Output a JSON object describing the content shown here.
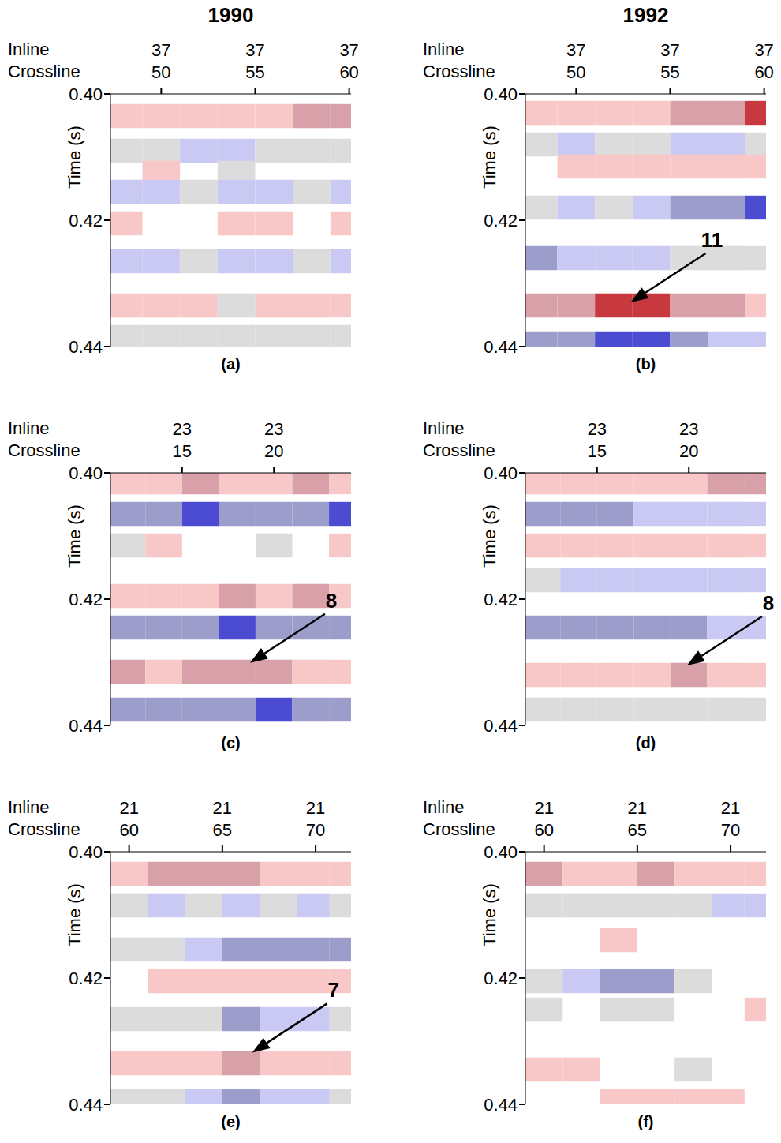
{
  "chart_data": [
    {
      "type": "heatmap",
      "title": "1990",
      "panel_label": "(a)",
      "xlabel_top": "Inline",
      "xlabel": "Crossline",
      "inline": 37,
      "xlim": [
        47.3,
        60.1
      ],
      "xticks": [
        50,
        55,
        60
      ],
      "ylabel": "Time (s)",
      "ylim": [
        0.4,
        0.44
      ],
      "yticks": [
        {
          "value": 0.4,
          "label": "0.40"
        },
        {
          "value": 0.42,
          "label": "0.42"
        },
        {
          "value": 0.44,
          "label": "0.44"
        }
      ],
      "x": [
        48,
        50,
        52,
        54,
        56,
        58,
        60
      ],
      "events": [
        {
          "time": 0.4035,
          "amplitude": [
            1,
            1,
            1,
            1,
            1,
            2,
            2
          ]
        },
        {
          "time": 0.409,
          "amplitude": [
            0.5,
            0.5,
            -1,
            -1,
            0.5,
            0.5,
            0.5
          ]
        },
        {
          "time": 0.4125,
          "amplitude": [
            0,
            1,
            0,
            0.5,
            0,
            0,
            0
          ]
        },
        {
          "time": 0.4155,
          "amplitude": [
            -1,
            -1,
            0.5,
            -1,
            -1,
            0.5,
            -1
          ]
        },
        {
          "time": 0.4205,
          "amplitude": [
            1,
            0,
            0,
            1,
            1,
            0,
            1
          ]
        },
        {
          "time": 0.4265,
          "amplitude": [
            -1,
            -1,
            0.5,
            -1,
            -1,
            0.5,
            -1
          ]
        },
        {
          "time": 0.4335,
          "amplitude": [
            1,
            1,
            1,
            0.5,
            1,
            1,
            1
          ]
        },
        {
          "time": 0.4385,
          "amplitude": [
            0.5,
            0.5,
            0.5,
            0.5,
            0.5,
            0.5,
            0.5
          ]
        }
      ],
      "annotations": []
    },
    {
      "type": "heatmap",
      "title": "1992",
      "panel_label": "(b)",
      "xlabel_top": "Inline",
      "xlabel": "Crossline",
      "inline": 37,
      "xlim": [
        47.3,
        60.1
      ],
      "xticks": [
        50,
        55,
        60
      ],
      "ylabel": "Time (s)",
      "ylim": [
        0.4,
        0.44
      ],
      "yticks": [
        {
          "value": 0.4,
          "label": "0.40"
        },
        {
          "value": 0.42,
          "label": "0.42"
        },
        {
          "value": 0.44,
          "label": "0.44"
        }
      ],
      "x": [
        48,
        50,
        52,
        54,
        56,
        58,
        60
      ],
      "events": [
        {
          "time": 0.403,
          "amplitude": [
            1,
            1,
            1,
            1,
            2,
            2,
            3
          ]
        },
        {
          "time": 0.408,
          "amplitude": [
            0.5,
            -1,
            0.5,
            0.5,
            -1,
            -1,
            0.5
          ]
        },
        {
          "time": 0.4115,
          "amplitude": [
            0,
            1,
            1,
            1,
            1,
            1,
            1
          ]
        },
        {
          "time": 0.418,
          "amplitude": [
            0.5,
            -1,
            0.5,
            -1,
            -2,
            -2,
            -3
          ]
        },
        {
          "time": 0.426,
          "amplitude": [
            -2,
            -1,
            -1,
            -1,
            0.5,
            0.5,
            0.5
          ]
        },
        {
          "time": 0.4335,
          "amplitude": [
            2,
            2,
            3,
            3,
            2,
            2,
            1
          ]
        },
        {
          "time": 0.4395,
          "amplitude": [
            -2,
            -2,
            -3,
            -3,
            -2,
            -1,
            -1
          ]
        }
      ],
      "annotations": [
        {
          "text": "11",
          "x": 52.9,
          "y": 0.433
        }
      ]
    },
    {
      "type": "heatmap",
      "panel_label": "(c)",
      "xlabel_top": "Inline",
      "xlabel": "Crossline",
      "inline": 23,
      "xlim": [
        11.1,
        24.2
      ],
      "xticks": [
        15,
        20
      ],
      "ylabel": "Time (s)",
      "ylim": [
        0.4,
        0.44
      ],
      "yticks": [
        {
          "value": 0.4,
          "label": "0.40"
        },
        {
          "value": 0.42,
          "label": "0.42"
        },
        {
          "value": 0.44,
          "label": "0.44"
        }
      ],
      "x": [
        12,
        14,
        16,
        18,
        20,
        22,
        24
      ],
      "events": [
        {
          "time": 0.4015,
          "amplitude": [
            1,
            1,
            2,
            1,
            1,
            2,
            1
          ]
        },
        {
          "time": 0.4065,
          "amplitude": [
            -2,
            -2,
            -3,
            -2,
            -2,
            -2,
            -3
          ]
        },
        {
          "time": 0.4115,
          "amplitude": [
            0.5,
            1,
            0,
            0,
            0.5,
            0,
            1
          ]
        },
        {
          "time": 0.4195,
          "amplitude": [
            1,
            1,
            1,
            2,
            1,
            2,
            1
          ]
        },
        {
          "time": 0.4245,
          "amplitude": [
            -2,
            -2,
            -2,
            -3,
            -2,
            -2,
            -2
          ]
        },
        {
          "time": 0.4315,
          "amplitude": [
            2,
            1,
            2,
            2,
            2,
            1,
            1
          ]
        },
        {
          "time": 0.4375,
          "amplitude": [
            -2,
            -2,
            -2,
            -2,
            -3,
            -2,
            -2
          ]
        }
      ],
      "annotations": [
        {
          "text": "8",
          "x": 18.7,
          "y": 0.4301
        }
      ]
    },
    {
      "type": "heatmap",
      "panel_label": "(d)",
      "xlabel_top": "Inline",
      "xlabel": "Crossline",
      "inline": 23,
      "xlim": [
        11.1,
        24.2
      ],
      "xticks": [
        15,
        20
      ],
      "ylabel": "Time (s)",
      "ylim": [
        0.4,
        0.44
      ],
      "yticks": [
        {
          "value": 0.4,
          "label": "0.40"
        },
        {
          "value": 0.42,
          "label": "0.42"
        },
        {
          "value": 0.44,
          "label": "0.44"
        }
      ],
      "x": [
        12,
        14,
        16,
        18,
        20,
        22,
        24
      ],
      "events": [
        {
          "time": 0.4015,
          "amplitude": [
            1,
            1,
            1,
            1,
            1,
            2,
            2
          ]
        },
        {
          "time": 0.4065,
          "amplitude": [
            -2,
            -2,
            -2,
            -1,
            -1,
            -1,
            -1
          ]
        },
        {
          "time": 0.4115,
          "amplitude": [
            1,
            1,
            1,
            1,
            1,
            1,
            1
          ]
        },
        {
          "time": 0.417,
          "amplitude": [
            0.5,
            -1,
            -1,
            -1,
            -1,
            -1,
            -1
          ]
        },
        {
          "time": 0.4245,
          "amplitude": [
            -2,
            -2,
            -2,
            -2,
            -2,
            -1,
            -1
          ]
        },
        {
          "time": 0.432,
          "amplitude": [
            1,
            1,
            1,
            1,
            2,
            1,
            1
          ]
        },
        {
          "time": 0.4375,
          "amplitude": [
            0.5,
            0.5,
            0.5,
            0.5,
            0.5,
            0.5,
            0.5
          ]
        }
      ],
      "annotations": [
        {
          "text": "8",
          "x": 19.9,
          "y": 0.4305
        }
      ]
    },
    {
      "type": "heatmap",
      "panel_label": "(e)",
      "xlabel_top": "Inline",
      "xlabel": "Crossline",
      "inline": 21,
      "xlim": [
        59,
        71.9
      ],
      "xticks": [
        60,
        65,
        70
      ],
      "ylabel": "Time (s)",
      "ylim": [
        0.4,
        0.44
      ],
      "yticks": [
        {
          "value": 0.4,
          "label": "0.40"
        },
        {
          "value": 0.42,
          "label": "0.42"
        },
        {
          "value": 0.44,
          "label": "0.44"
        }
      ],
      "x": [
        60,
        62,
        64,
        66,
        68,
        70,
        71.5
      ],
      "events": [
        {
          "time": 0.4035,
          "amplitude": [
            1,
            2,
            2,
            2,
            1,
            1,
            1
          ]
        },
        {
          "time": 0.4085,
          "amplitude": [
            0.5,
            -1,
            0.5,
            -1,
            0.5,
            -1,
            0.5
          ]
        },
        {
          "time": 0.4155,
          "amplitude": [
            0.5,
            0.5,
            -1,
            -2,
            -2,
            -2,
            -2
          ]
        },
        {
          "time": 0.4205,
          "amplitude": [
            0,
            1,
            1,
            1,
            1,
            1,
            1
          ]
        },
        {
          "time": 0.4265,
          "amplitude": [
            0.5,
            0.5,
            0.5,
            -2,
            -1,
            -1,
            0.5
          ]
        },
        {
          "time": 0.4335,
          "amplitude": [
            1,
            1,
            1,
            2,
            1,
            1,
            1
          ]
        },
        {
          "time": 0.4395,
          "amplitude": [
            0.5,
            0.5,
            -1,
            -2,
            -1,
            -1,
            0.5
          ]
        }
      ],
      "annotations": [
        {
          "text": "7",
          "x": 66.6,
          "y": 0.4318
        }
      ]
    },
    {
      "type": "heatmap",
      "panel_label": "(f)",
      "xlabel_top": "Inline",
      "xlabel": "Crossline",
      "inline": 21,
      "xlim": [
        59,
        71.9
      ],
      "xticks": [
        60,
        65,
        70
      ],
      "ylabel": "Time (s)",
      "ylim": [
        0.4,
        0.44
      ],
      "yticks": [
        {
          "value": 0.4,
          "label": "0.40"
        },
        {
          "value": 0.42,
          "label": "0.42"
        },
        {
          "value": 0.44,
          "label": "0.44"
        }
      ],
      "x": [
        60,
        62,
        64,
        66,
        68,
        70,
        71.5
      ],
      "events": [
        {
          "time": 0.4035,
          "amplitude": [
            2,
            1,
            1,
            2,
            1,
            1,
            1
          ]
        },
        {
          "time": 0.4085,
          "amplitude": [
            0.5,
            0.5,
            0.5,
            0.5,
            0.5,
            -1,
            -1
          ]
        },
        {
          "time": 0.414,
          "amplitude": [
            0,
            0,
            1,
            0,
            0,
            0,
            0
          ]
        },
        {
          "time": 0.4205,
          "amplitude": [
            0.5,
            -1,
            -2,
            -2,
            0.5,
            0,
            0
          ]
        },
        {
          "time": 0.425,
          "amplitude": [
            0.5,
            0,
            0.5,
            0.5,
            0,
            0,
            1
          ]
        },
        {
          "time": 0.4345,
          "amplitude": [
            1,
            1,
            0,
            0,
            0.5,
            0,
            0
          ]
        },
        {
          "time": 0.4395,
          "amplitude": [
            0,
            0,
            1,
            1,
            1,
            1,
            0
          ]
        }
      ],
      "annotations": []
    }
  ]
}
